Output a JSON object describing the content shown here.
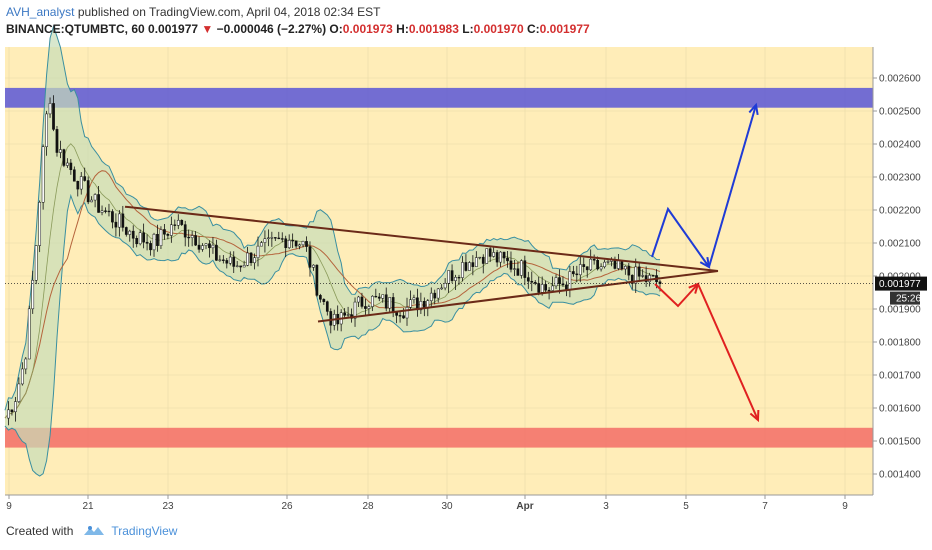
{
  "header": {
    "author": "AVH_analyst",
    "published_text": " published on TradingView.com, April 04, 2018 02:34 EST"
  },
  "symbol": {
    "name": "BINANCE:QTUMBTC, 60",
    "last": "0.001977",
    "change": "−0.000046 (−2.27%)",
    "open_label": "O:",
    "open": "0.001973",
    "high_label": "H:",
    "high": "0.001983",
    "low_label": "L:",
    "low": "0.001970",
    "close_label": "C:",
    "close": "0.001977"
  },
  "footer": {
    "created_with": "Created with",
    "brand": "TradingView"
  },
  "colors": {
    "background": "#ffedb8",
    "resistance_zone": "#5a56d6",
    "support_zone": "#f4736b",
    "trendline": "#6b2a18",
    "bullish_arrow": "#1f3bd6",
    "bearish_arrow": "#e02020",
    "band_fill": "#c8ddb8",
    "band_line": "#3a8fa0"
  },
  "chart_data": {
    "type": "candlestick",
    "yaxis_ticks": [
      "0.002600",
      "0.002500",
      "0.002400",
      "0.002300",
      "0.002200",
      "0.002100",
      "0.002000",
      "0.001900",
      "0.001800",
      "0.001700",
      "0.001600",
      "0.001500",
      "0.001400"
    ],
    "ylim": [
      0.00135,
      0.00265
    ],
    "xaxis_ticks": [
      "9",
      "21",
      "23",
      "26",
      "28",
      "30",
      "Apr",
      "3",
      "5",
      "7",
      "9"
    ],
    "price_label": "0.001977",
    "time_label": "25:26",
    "zones": [
      {
        "name": "resistance",
        "from": 0.00251,
        "to": 0.00257
      },
      {
        "name": "support",
        "from": 0.00148,
        "to": 0.00154
      }
    ],
    "close_path": [
      [
        0,
        0.00157
      ],
      [
        0.02,
        0.00163
      ],
      [
        0.04,
        0.00175
      ],
      [
        0.06,
        0.00205
      ],
      [
        0.08,
        0.00245
      ],
      [
        0.09,
        0.00255
      ],
      [
        0.1,
        0.0024
      ],
      [
        0.12,
        0.00235
      ],
      [
        0.15,
        0.00228
      ],
      [
        0.18,
        0.00222
      ],
      [
        0.22,
        0.00217
      ],
      [
        0.26,
        0.00212
      ],
      [
        0.3,
        0.0021
      ],
      [
        0.34,
        0.00216
      ],
      [
        0.38,
        0.00212
      ],
      [
        0.42,
        0.00206
      ],
      [
        0.46,
        0.00203
      ],
      [
        0.5,
        0.00207
      ],
      [
        0.54,
        0.0021
      ],
      [
        0.57,
        0.00212
      ],
      [
        0.6,
        0.00209
      ],
      [
        0.63,
        0.00194
      ],
      [
        0.66,
        0.00185
      ],
      [
        0.69,
        0.00189
      ],
      [
        0.72,
        0.00193
      ],
      [
        0.76,
        0.00192
      ],
      [
        0.8,
        0.0019
      ],
      [
        0.84,
        0.00193
      ],
      [
        0.88,
        0.00199
      ],
      [
        0.92,
        0.00204
      ],
      [
        0.96,
        0.00207
      ],
      [
        1.0,
        0.00204
      ],
      [
        1.04,
        0.00202
      ],
      [
        1.08,
        0.00196
      ],
      [
        1.12,
        0.00198
      ],
      [
        1.16,
        0.00202
      ],
      [
        1.2,
        0.00203
      ],
      [
        1.24,
        0.00201
      ],
      [
        1.28,
        0.00199
      ],
      [
        1.31,
        0.00198
      ]
    ]
  }
}
